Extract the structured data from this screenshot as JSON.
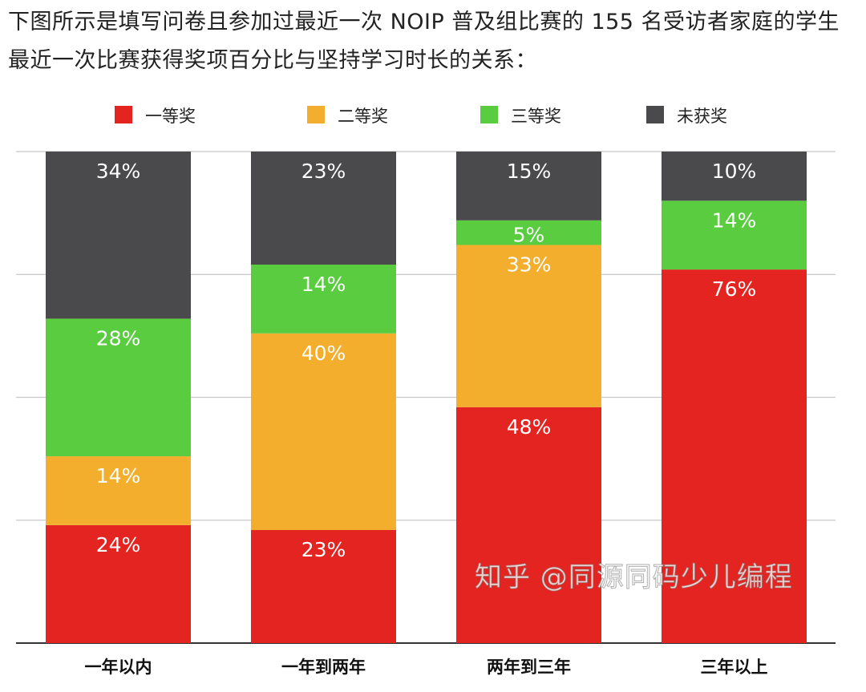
{
  "intro_text": "下图所示是填写问卷且参加过最近一次 NOIP 普及组比赛的 155 名受访者家庭的学生最近一次比赛获得奖项百分比与坚持学习时长的关系：",
  "watermark": "知乎 @同源同码少儿编程",
  "chart_data": {
    "type": "bar",
    "stacked": true,
    "categories": [
      "一年以内",
      "一年到两年",
      "两年到三年",
      "三年以上"
    ],
    "series": [
      {
        "name": "一等奖",
        "color": "#e32420",
        "values": [
          24,
          23,
          48,
          76
        ]
      },
      {
        "name": "二等奖",
        "color": "#f2ae2c",
        "values": [
          14,
          40,
          33,
          0
        ]
      },
      {
        "name": "三等奖",
        "color": "#5acc3f",
        "values": [
          28,
          14,
          5,
          14
        ]
      },
      {
        "name": "未获奖",
        "color": "#4a494b",
        "values": [
          34,
          23,
          15,
          10
        ]
      }
    ],
    "ylim": [
      0,
      100
    ],
    "grid": true,
    "legend": "top",
    "value_suffix": "%"
  }
}
